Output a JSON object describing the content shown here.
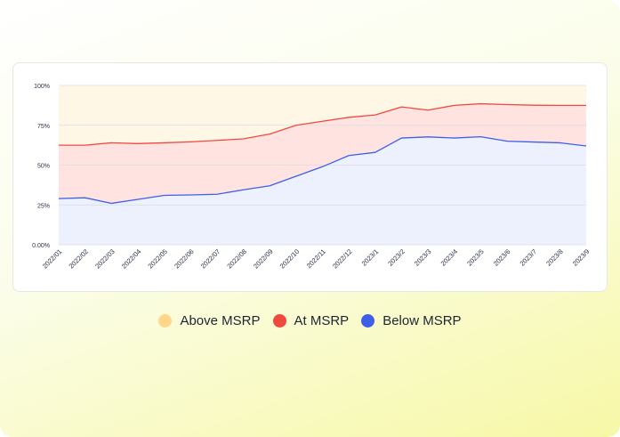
{
  "chart_data": {
    "type": "area",
    "stacked": true,
    "x": [
      "2022/01",
      "2022/02",
      "2022/03",
      "2022/04",
      "2022/05",
      "2022/06",
      "2022/07",
      "2022/08",
      "2022/09",
      "2022/10",
      "2022/11",
      "2022/12",
      "2023/1",
      "2023/2",
      "2023/3",
      "2023/4",
      "2023/5",
      "2023/6",
      "2023/7",
      "2023/8",
      "2023/9"
    ],
    "ylim": [
      0,
      100
    ],
    "yticks": [
      0,
      25,
      50,
      75,
      100
    ],
    "ytick_labels": [
      "0.00%",
      "25%",
      "50%",
      "75%",
      "100%"
    ],
    "grid": true,
    "legend_position": "bottom",
    "series": [
      {
        "name": "Below MSRP",
        "color": "#3f5fe8",
        "fill": "#edf0fd",
        "cumulative": [
          29,
          29.5,
          26,
          28.5,
          31,
          31.3,
          31.7,
          34.5,
          37,
          43,
          49,
          56,
          58,
          67,
          67.7,
          67,
          67.8,
          65,
          64.5,
          64,
          62
        ]
      },
      {
        "name": "At MSRP",
        "color": "#f04a3e",
        "fill": "#fee3e1",
        "cumulative": [
          62.5,
          62.5,
          64,
          63.5,
          64,
          64.6,
          65.5,
          66.5,
          69.5,
          75,
          77.5,
          80,
          81.5,
          86.5,
          84.5,
          87.5,
          88.5,
          88,
          87.6,
          87.5,
          87.5
        ]
      },
      {
        "name": "Above MSRP",
        "color": "#ffd68a",
        "fill": "#fff7e6",
        "cumulative": [
          100,
          100,
          100,
          100,
          100,
          100,
          100,
          100,
          100,
          100,
          100,
          100,
          100,
          100,
          100,
          100,
          100,
          100,
          100,
          100,
          100
        ]
      }
    ]
  },
  "legend": {
    "items": [
      {
        "label": "Above MSRP",
        "color": "#ffd68a"
      },
      {
        "label": "At MSRP",
        "color": "#f04a3e"
      },
      {
        "label": "Below MSRP",
        "color": "#3f5fe8"
      }
    ]
  }
}
